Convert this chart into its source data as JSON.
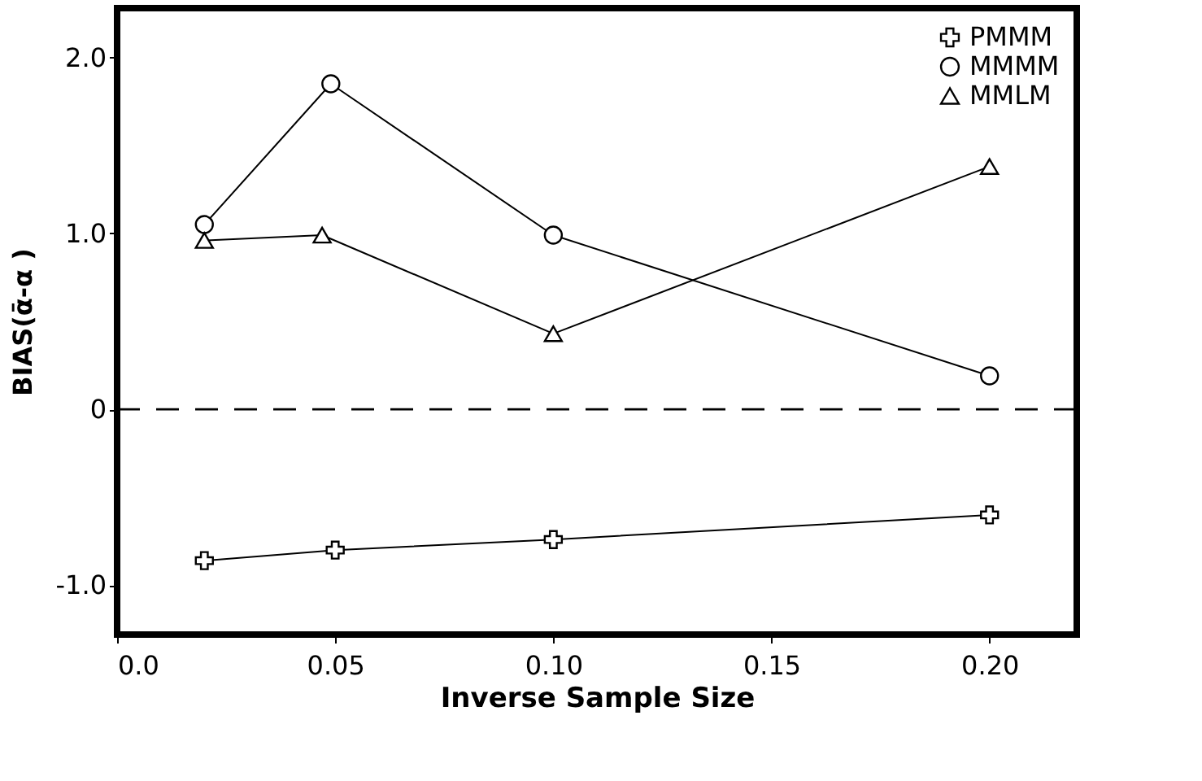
{
  "chart_data": {
    "type": "line",
    "xlabel": "Inverse Sample Size",
    "ylabel": "BIAS(ᾱ-α )",
    "xlim": [
      0.0,
      0.22
    ],
    "xticks": [
      {
        "value": 0,
        "label": "0.0"
      },
      0.05,
      {
        "value": 0.1,
        "label": "0.10"
      },
      0.15,
      {
        "value": 0.2,
        "label": "0.20"
      }
    ],
    "ylim": [
      -1.28,
      2.28
    ],
    "yticks": [
      {
        "value": -1,
        "label": "-1.0"
      },
      {
        "value": 0,
        "label": "0"
      },
      {
        "value": 1,
        "label": "1.0"
      },
      {
        "value": 2,
        "label": "2.0"
      }
    ],
    "grid": false,
    "legend": "top right",
    "line_style": "solid",
    "series": [
      {
        "name": "PMMM",
        "color": "#000000",
        "marker": "cross",
        "x": [
          0.02,
          0.05,
          0.1,
          0.2
        ],
        "values": [
          -0.86,
          -0.8,
          -0.74,
          -0.6
        ]
      },
      {
        "name": "MMMM",
        "color": "#000000",
        "marker": "circle",
        "x": [
          0.02,
          0.049,
          0.1,
          0.2
        ],
        "values": [
          1.05,
          1.85,
          0.99,
          0.19
        ]
      },
      {
        "name": "MMLM",
        "color": "#000000",
        "marker": "triangle",
        "x": [
          0.02,
          0.047,
          0.1,
          0.2
        ],
        "values": [
          0.96,
          0.99,
          0.43,
          1.38
        ]
      }
    ],
    "ref_lines": [
      {
        "axis": "y",
        "value": 0,
        "label": null,
        "line_style": "dashed",
        "color": "#000000"
      }
    ]
  }
}
